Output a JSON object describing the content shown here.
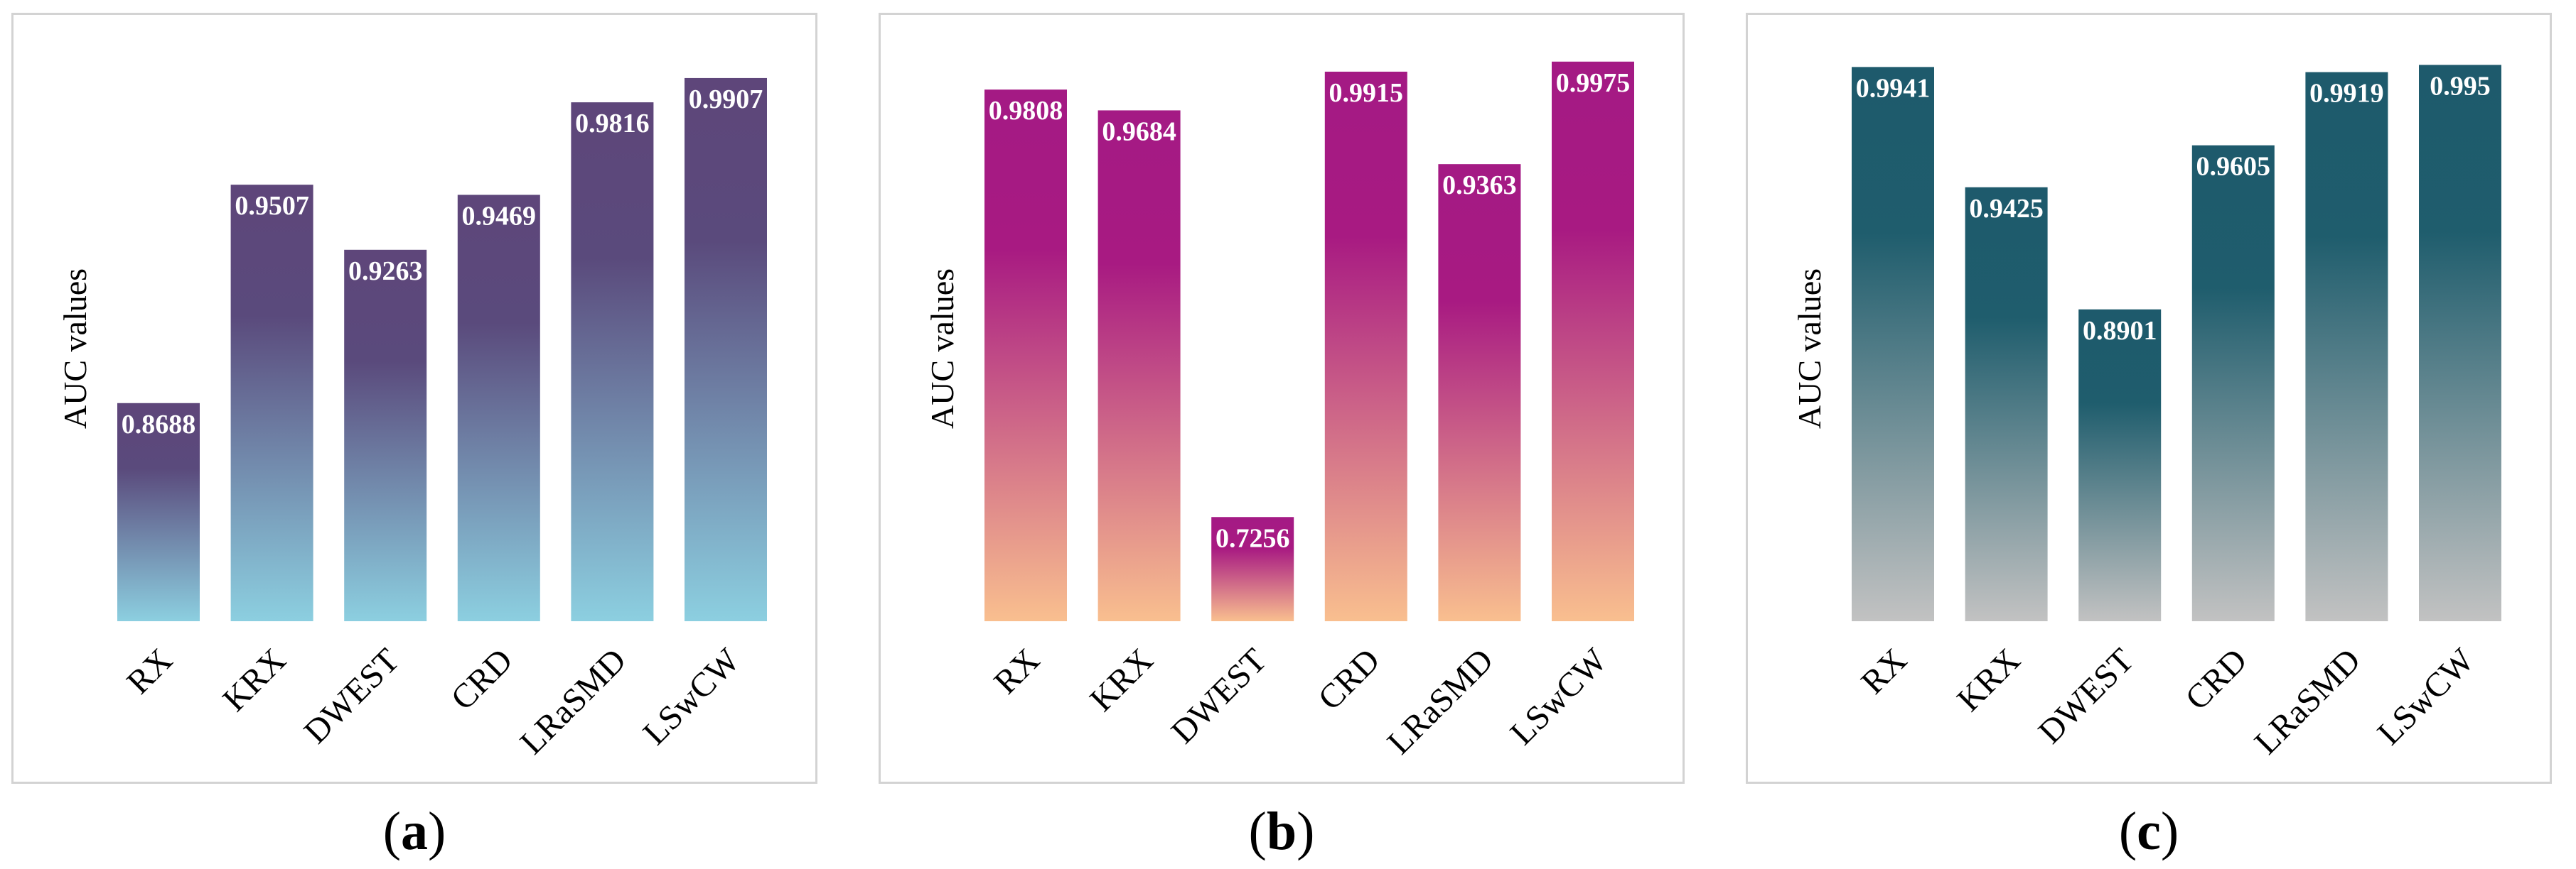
{
  "chart_data": [
    {
      "type": "bar",
      "panel": "a",
      "ylabel": "AUC values",
      "categories": [
        "RX",
        "KRX",
        "DWEST",
        "CRD",
        "LRaSMD",
        "LSwCW"
      ],
      "values": [
        0.8688,
        0.9507,
        0.9263,
        0.9469,
        0.9816,
        0.9907
      ],
      "value_labels": [
        "0.8688",
        "0.9507",
        "0.9263",
        "0.9469",
        "0.9816",
        "0.9907"
      ],
      "ylim": [
        0.787,
        1.0
      ],
      "gradient": {
        "top": "#5e467a",
        "mid": "#5a4a7c",
        "bottom": "#8ccfe0"
      }
    },
    {
      "type": "bar",
      "panel": "b",
      "ylabel": "AUC values",
      "categories": [
        "RX",
        "KRX",
        "DWEST",
        "CRD",
        "LRaSMD",
        "LSwCW"
      ],
      "values": [
        0.9808,
        0.9684,
        0.7256,
        0.9915,
        0.9363,
        0.9975
      ],
      "value_labels": [
        "0.9808",
        "0.9684",
        "0.7256",
        "0.9915",
        "0.9363",
        "0.9975"
      ],
      "ylim": [
        0.6634,
        1.0025
      ],
      "gradient": {
        "top": "#a41a84",
        "mid": "#a81a82",
        "bottom": "#f9bf8f"
      }
    },
    {
      "type": "bar",
      "panel": "c",
      "ylabel": "AUC values",
      "categories": [
        "RX",
        "KRX",
        "DWEST",
        "CRD",
        "LRaSMD",
        "LSwCW"
      ],
      "values": [
        0.9941,
        0.9425,
        0.8901,
        0.9605,
        0.9919,
        0.995
      ],
      "value_labels": [
        "0.9941",
        "0.9425",
        "0.8901",
        "0.9605",
        "0.9919",
        "0.995"
      ],
      "ylim": [
        0.7563,
        1.0
      ],
      "gradient": {
        "top": "#1e5a6c",
        "mid": "#1f5d6d",
        "bottom": "#c2c2c2"
      }
    }
  ],
  "captions": [
    "a",
    "b",
    "c"
  ]
}
